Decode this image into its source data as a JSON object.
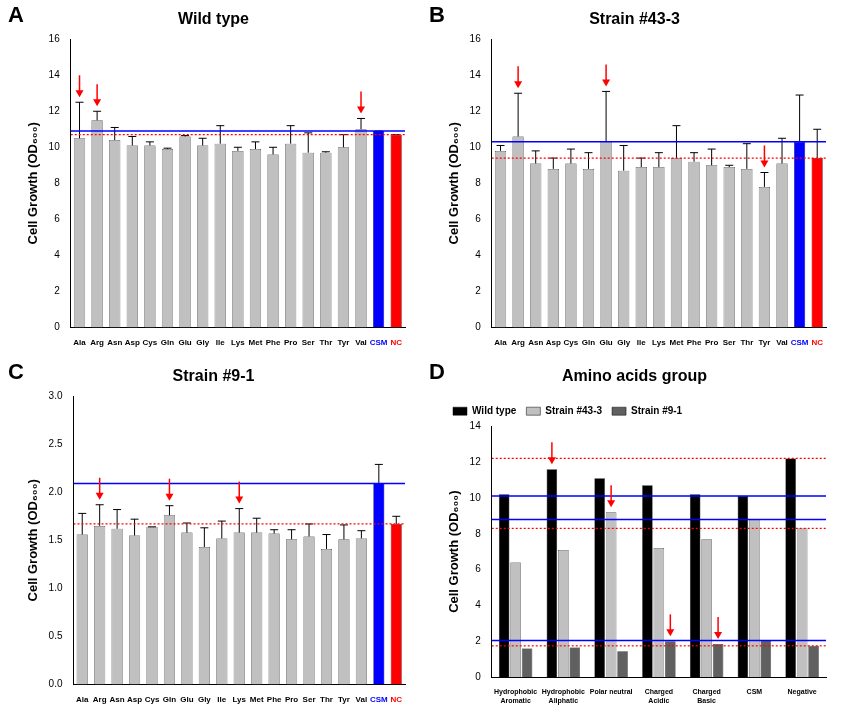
{
  "chart_data": [
    {
      "type": "bar",
      "panel": "A",
      "title": "Wild type",
      "y_label": "Cell Growth (OD₆₀₀)",
      "categories": [
        "Ala",
        "Arg",
        "Asn",
        "Asp",
        "Cys",
        "Gln",
        "Glu",
        "Gly",
        "Ile",
        "Lys",
        "Met",
        "Phe",
        "Pro",
        "Ser",
        "Thr",
        "Tyr",
        "Val",
        "CSM",
        "NC"
      ],
      "values": [
        10.5,
        11.5,
        10.4,
        10.1,
        10.1,
        9.9,
        10.6,
        10.1,
        10.2,
        9.8,
        9.9,
        9.6,
        10.2,
        9.7,
        9.7,
        10.0,
        11.0,
        10.9,
        10.7
      ],
      "errors": [
        2.0,
        0.5,
        0.7,
        0.5,
        0.2,
        0.05,
        0.05,
        0.4,
        1.0,
        0.2,
        0.4,
        0.4,
        1.0,
        1.1,
        0.05,
        0.7,
        0.6,
        0,
        0
      ],
      "colors": [
        "#c0c0c0",
        "#c0c0c0",
        "#c0c0c0",
        "#c0c0c0",
        "#c0c0c0",
        "#c0c0c0",
        "#c0c0c0",
        "#c0c0c0",
        "#c0c0c0",
        "#c0c0c0",
        "#c0c0c0",
        "#c0c0c0",
        "#c0c0c0",
        "#c0c0c0",
        "#c0c0c0",
        "#c0c0c0",
        "#c0c0c0",
        "#0000ff",
        "#ff0000"
      ],
      "hlines": [
        {
          "value": 10.9,
          "color": "#0000ff",
          "line_style": "solid"
        },
        {
          "value": 10.7,
          "color": "#ff0000",
          "line_style": "dotted"
        }
      ],
      "arrows": [
        "Ala",
        "Arg",
        "Val"
      ],
      "ylim": [
        0,
        16
      ],
      "yticks": [
        0,
        2,
        4,
        6,
        8,
        10,
        12,
        14,
        16
      ],
      "grid": false
    },
    {
      "type": "bar",
      "panel": "B",
      "title": "Strain #43-3",
      "y_label": "Cell Growth (OD₆₀₀)",
      "categories": [
        "Ala",
        "Arg",
        "Asn",
        "Asp",
        "Cys",
        "Gln",
        "Glu",
        "Gly",
        "Ile",
        "Lys",
        "Met",
        "Phe",
        "Pro",
        "Ser",
        "Thr",
        "Tyr",
        "Val",
        "CSM",
        "NC"
      ],
      "values": [
        9.8,
        10.6,
        9.1,
        8.8,
        9.1,
        8.8,
        10.3,
        8.7,
        8.9,
        8.9,
        9.4,
        9.2,
        9.0,
        8.9,
        8.8,
        7.8,
        9.1,
        10.3,
        9.4
      ],
      "errors": [
        0.3,
        2.4,
        0.7,
        0.6,
        0.8,
        0.9,
        2.8,
        1.4,
        0.5,
        0.8,
        1.8,
        0.5,
        0.9,
        0.1,
        1.4,
        0.8,
        1.4,
        2.6,
        1.6
      ],
      "colors": [
        "#c0c0c0",
        "#c0c0c0",
        "#c0c0c0",
        "#c0c0c0",
        "#c0c0c0",
        "#c0c0c0",
        "#c0c0c0",
        "#c0c0c0",
        "#c0c0c0",
        "#c0c0c0",
        "#c0c0c0",
        "#c0c0c0",
        "#c0c0c0",
        "#c0c0c0",
        "#c0c0c0",
        "#c0c0c0",
        "#c0c0c0",
        "#0000ff",
        "#ff0000"
      ],
      "hlines": [
        {
          "value": 10.3,
          "color": "#0000ff",
          "line_style": "solid"
        },
        {
          "value": 9.4,
          "color": "#ff0000",
          "line_style": "dotted"
        }
      ],
      "arrows": [
        "Arg",
        "Glu",
        "Tyr"
      ],
      "ylim": [
        0,
        16
      ],
      "yticks": [
        0,
        2,
        4,
        6,
        8,
        10,
        12,
        14,
        16
      ],
      "grid": false
    },
    {
      "type": "bar",
      "panel": "C",
      "title": "Strain #9-1",
      "y_label": "Cell Growth (OD₆₀₀)",
      "categories": [
        "Ala",
        "Arg",
        "Asn",
        "Asp",
        "Cys",
        "Gln",
        "Glu",
        "Gly",
        "Ile",
        "Lys",
        "Met",
        "Phe",
        "Pro",
        "Ser",
        "Thr",
        "Tyr",
        "Val",
        "CSM",
        "NC"
      ],
      "values": [
        1.56,
        1.65,
        1.62,
        1.55,
        1.64,
        1.76,
        1.58,
        1.43,
        1.52,
        1.58,
        1.58,
        1.57,
        1.51,
        1.54,
        1.41,
        1.51,
        1.52,
        2.09,
        1.67
      ],
      "errors": [
        0.22,
        0.22,
        0.2,
        0.17,
        0,
        0.1,
        0.1,
        0.2,
        0.18,
        0.25,
        0.15,
        0.04,
        0.1,
        0.13,
        0.15,
        0.15,
        0.08,
        0.2,
        0.08
      ],
      "colors": [
        "#c0c0c0",
        "#c0c0c0",
        "#c0c0c0",
        "#c0c0c0",
        "#c0c0c0",
        "#c0c0c0",
        "#c0c0c0",
        "#c0c0c0",
        "#c0c0c0",
        "#c0c0c0",
        "#c0c0c0",
        "#c0c0c0",
        "#c0c0c0",
        "#c0c0c0",
        "#c0c0c0",
        "#c0c0c0",
        "#c0c0c0",
        "#0000ff",
        "#ff0000"
      ],
      "hlines": [
        {
          "value": 2.09,
          "color": "#0000ff",
          "line_style": "solid"
        },
        {
          "value": 1.67,
          "color": "#ff0000",
          "line_style": "dotted"
        }
      ],
      "arrows": [
        "Arg",
        "Gln",
        "Lys"
      ],
      "ylim": [
        0,
        3
      ],
      "yticks": [
        {
          "value": 0,
          "label": "0.0"
        },
        0.5,
        {
          "value": 1,
          "label": "1.0"
        },
        1.5,
        {
          "value": 2,
          "label": "2.0"
        },
        2.5,
        {
          "value": 3,
          "label": "3.0"
        }
      ],
      "grid": false
    },
    {
      "type": "bar",
      "panel": "D",
      "title": "Amino acids group",
      "y_label": "Cell Growth (OD₆₀₀)",
      "categories": [
        "Hydrophobic\nAromatic",
        "Hydrophobic\nAliphatic",
        "Polar neutral",
        "Charged\nAcidic",
        "Charged\nBasic",
        "CSM",
        "Negative"
      ],
      "series": [
        {
          "name": "Wild type",
          "color": "#000000",
          "values": [
            10.2,
            11.6,
            11.1,
            10.7,
            10.2,
            10.1,
            12.2
          ]
        },
        {
          "name": "Strain #43-3",
          "color": "#c0c0c0",
          "values": [
            6.4,
            7.1,
            9.2,
            7.2,
            7.7,
            8.8,
            8.3
          ]
        },
        {
          "name": "Strain #9-1",
          "color": "#606060",
          "values": [
            1.6,
            1.65,
            1.45,
            2.0,
            1.85,
            2.05,
            1.75
          ]
        }
      ],
      "hlines": [
        {
          "value": 10.1,
          "color": "#0000ff",
          "line_style": "solid"
        },
        {
          "value": 8.8,
          "color": "#0000ff",
          "line_style": "solid"
        },
        {
          "value": 2.05,
          "color": "#0000ff",
          "line_style": "solid"
        },
        {
          "value": 12.2,
          "color": "#ff0000",
          "line_style": "dotted"
        },
        {
          "value": 8.3,
          "color": "#ff0000",
          "line_style": "dotted"
        },
        {
          "value": 1.75,
          "color": "#ff0000",
          "line_style": "dotted"
        }
      ],
      "arrows": [
        {
          "category": "Hydrophobic\nAliphatic",
          "series": "Wild type"
        },
        {
          "category": "Polar neutral",
          "series": "Strain #43-3"
        },
        {
          "category": "Charged\nAcidic",
          "series": "Strain #9-1"
        },
        {
          "category": "Charged\nBasic",
          "series": "Strain #9-1"
        }
      ],
      "legend": "top left",
      "ylim": [
        0,
        14
      ],
      "yticks": [
        0,
        2,
        4,
        6,
        8,
        10,
        12,
        14
      ],
      "grid": false
    }
  ]
}
